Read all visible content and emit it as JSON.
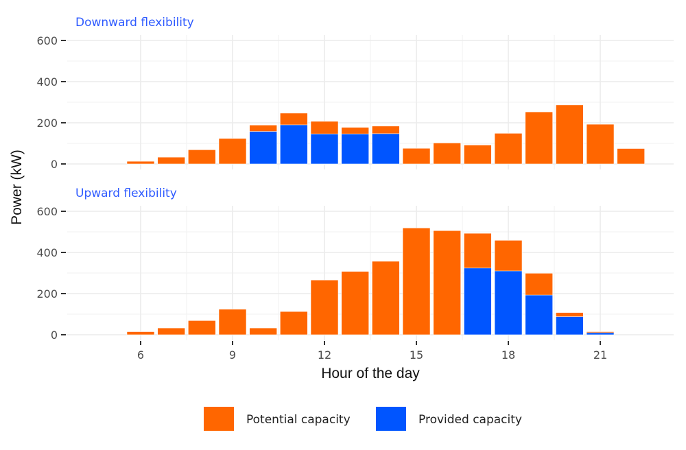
{
  "chart_data": {
    "type": "bar",
    "stacked": true,
    "xlabel": "Hour of the day",
    "ylabel": "Power (kW)",
    "x_ticks": [
      6,
      9,
      12,
      15,
      18,
      21
    ],
    "y_ticks": [
      0,
      200,
      400,
      600
    ],
    "ylim": [
      0,
      600
    ],
    "xlim": [
      3.6,
      23.8
    ],
    "grid": true,
    "legend_position": "bottom",
    "legend": [
      {
        "name": "Potential capacity",
        "color": "#ff6600"
      },
      {
        "name": "Provided capacity",
        "color": "#0055ff"
      }
    ],
    "panels": [
      {
        "title": "Downward flexibility",
        "hours": [
          6,
          7,
          8,
          9,
          10,
          11,
          12,
          13,
          14,
          15,
          16,
          17,
          18,
          19,
          20,
          21,
          22
        ],
        "series": [
          {
            "name": "Potential capacity",
            "values": [
              13,
              33,
              69,
              124,
              189,
              247,
              207,
              178,
              184,
              76,
              102,
              92,
              149,
              253,
              287,
              193,
              75
            ]
          },
          {
            "name": "Provided capacity",
            "values": [
              0,
              0,
              0,
              0,
              158,
              190,
              146,
              146,
              147,
              0,
              0,
              0,
              0,
              0,
              0,
              0,
              0
            ]
          }
        ]
      },
      {
        "title": "Upward flexibility",
        "hours": [
          6,
          7,
          8,
          9,
          10,
          11,
          12,
          13,
          14,
          15,
          16,
          17,
          18,
          19,
          20,
          21
        ],
        "series": [
          {
            "name": "Potential capacity",
            "values": [
              15,
              33,
              69,
              124,
              33,
              113,
              266,
              308,
              357,
              519,
              506,
              493,
              459,
              299,
              108,
              15
            ]
          },
          {
            "name": "Provided capacity",
            "values": [
              0,
              0,
              0,
              0,
              0,
              0,
              0,
              0,
              0,
              0,
              0,
              324,
              310,
              193,
              88,
              10
            ]
          }
        ]
      }
    ]
  }
}
